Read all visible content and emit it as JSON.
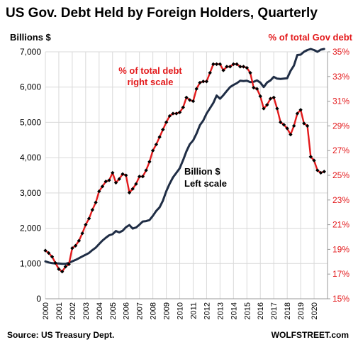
{
  "chart_data": {
    "type": "line",
    "title": "US Gov. Debt Held by Foreign Holders, Quarterly",
    "left_axis_title": "Billions  $",
    "right_axis_title": "% of total Gov debt",
    "annotation_percent": [
      "% of total debt",
      "right scale"
    ],
    "annotation_billion": [
      "Billion $",
      "Left scale"
    ],
    "source": "Source: US Treasury Dept.",
    "credit": "WOLFSTREET.com",
    "colors": {
      "billions": "#1f2d45",
      "percent": "#e31a1c",
      "marker": "#000000",
      "grid": "#d9d9d9"
    },
    "grid": true,
    "left_ylim": [
      0,
      7000
    ],
    "left_ticks": [
      "0",
      "1,000",
      "2,000",
      "3,000",
      "4,000",
      "5,000",
      "6,000",
      "7,000"
    ],
    "right_ylim": [
      15,
      35
    ],
    "right_ticks": [
      "15%",
      "17%",
      "19%",
      "21%",
      "23%",
      "25%",
      "27%",
      "29%",
      "31%",
      "33%",
      "35%"
    ],
    "x_labels": [
      "2000",
      "2001",
      "2002",
      "2003",
      "2004",
      "2005",
      "2006",
      "2007",
      "2008",
      "2009",
      "2010",
      "2011",
      "2012",
      "2013",
      "2014",
      "2015",
      "2016",
      "2017",
      "2018",
      "2019",
      "2020"
    ],
    "xlim": [
      2000,
      2021
    ],
    "series": [
      {
        "name": "Billion $",
        "axis": "left",
        "x": [
          2000.0,
          2000.25,
          2000.5,
          2000.75,
          2001.0,
          2001.25,
          2001.5,
          2001.75,
          2002.0,
          2002.25,
          2002.5,
          2002.75,
          2003.0,
          2003.25,
          2003.5,
          2003.75,
          2004.0,
          2004.25,
          2004.5,
          2004.75,
          2005.0,
          2005.25,
          2005.5,
          2005.75,
          2006.0,
          2006.25,
          2006.5,
          2006.75,
          2007.0,
          2007.25,
          2007.5,
          2007.75,
          2008.0,
          2008.25,
          2008.5,
          2008.75,
          2009.0,
          2009.25,
          2009.5,
          2009.75,
          2010.0,
          2010.25,
          2010.5,
          2010.75,
          2011.0,
          2011.25,
          2011.5,
          2011.75,
          2012.0,
          2012.25,
          2012.5,
          2012.75,
          2013.0,
          2013.25,
          2013.5,
          2013.75,
          2014.0,
          2014.25,
          2014.5,
          2014.75,
          2015.0,
          2015.25,
          2015.5,
          2015.75,
          2016.0,
          2016.25,
          2016.5,
          2016.75,
          2017.0,
          2017.25,
          2017.5,
          2017.75,
          2018.0,
          2018.25,
          2018.5,
          2018.75,
          2019.0,
          2019.25,
          2019.5,
          2019.75,
          2020.0,
          2020.25,
          2020.5,
          2020.75
        ],
        "values": [
          1060,
          1030,
          1010,
          1000,
          1000,
          990,
          990,
          1020,
          1060,
          1100,
          1150,
          1200,
          1250,
          1300,
          1380,
          1450,
          1550,
          1650,
          1730,
          1800,
          1830,
          1920,
          1880,
          1930,
          2030,
          2090,
          1990,
          2020,
          2100,
          2190,
          2200,
          2230,
          2350,
          2490,
          2590,
          2780,
          3050,
          3260,
          3440,
          3570,
          3700,
          3930,
          4180,
          4380,
          4490,
          4680,
          4920,
          5050,
          5250,
          5400,
          5550,
          5760,
          5670,
          5770,
          5890,
          6000,
          6060,
          6110,
          6180,
          6170,
          6180,
          6140,
          6150,
          6190,
          6130,
          6000,
          6130,
          6190,
          6290,
          6240,
          6230,
          6240,
          6250,
          6460,
          6610,
          6910,
          6920,
          7000,
          7050,
          7080,
          7050,
          7000,
          7060,
          7080
        ]
      },
      {
        "name": "% of total debt",
        "axis": "right",
        "x": [
          2000.0,
          2000.25,
          2000.5,
          2000.75,
          2001.0,
          2001.25,
          2001.5,
          2001.75,
          2002.0,
          2002.25,
          2002.5,
          2002.75,
          2003.0,
          2003.25,
          2003.5,
          2003.75,
          2004.0,
          2004.25,
          2004.5,
          2004.75,
          2005.0,
          2005.25,
          2005.5,
          2005.75,
          2006.0,
          2006.25,
          2006.5,
          2006.75,
          2007.0,
          2007.25,
          2007.5,
          2007.75,
          2008.0,
          2008.25,
          2008.5,
          2008.75,
          2009.0,
          2009.25,
          2009.5,
          2009.75,
          2010.0,
          2010.25,
          2010.5,
          2010.75,
          2011.0,
          2011.25,
          2011.5,
          2011.75,
          2012.0,
          2012.25,
          2012.5,
          2012.75,
          2013.0,
          2013.25,
          2013.5,
          2013.75,
          2014.0,
          2014.25,
          2014.5,
          2014.75,
          2015.0,
          2015.25,
          2015.5,
          2015.75,
          2016.0,
          2016.25,
          2016.5,
          2016.75,
          2017.0,
          2017.25,
          2017.5,
          2017.75,
          2018.0,
          2018.25,
          2018.5,
          2018.75,
          2019.0,
          2019.25,
          2019.5,
          2019.75,
          2020.0,
          2020.25,
          2020.5,
          2020.75
        ],
        "values": [
          18.9,
          18.7,
          18.4,
          17.9,
          17.4,
          17.2,
          17.6,
          17.8,
          19.1,
          19.3,
          19.7,
          20.3,
          21.0,
          21.5,
          22.2,
          22.8,
          23.7,
          24.1,
          24.5,
          24.6,
          25.2,
          24.4,
          24.7,
          25.1,
          25.0,
          23.6,
          23.9,
          24.3,
          24.9,
          24.9,
          25.4,
          26.1,
          27.0,
          27.5,
          28.1,
          28.7,
          29.3,
          29.8,
          30.0,
          30.0,
          30.1,
          30.5,
          31.3,
          31.1,
          31.0,
          32.0,
          32.5,
          32.6,
          32.6,
          33.3,
          34.0,
          34.0,
          34.0,
          33.5,
          33.8,
          33.8,
          34.0,
          34.0,
          33.8,
          33.8,
          33.7,
          33.3,
          32.1,
          32.0,
          31.4,
          30.4,
          30.7,
          31.2,
          31.3,
          30.4,
          29.3,
          29.1,
          28.8,
          28.3,
          29.0,
          30.0,
          30.3,
          29.2,
          29.0,
          26.5,
          26.2,
          25.4,
          25.2,
          25.3
        ]
      }
    ]
  }
}
